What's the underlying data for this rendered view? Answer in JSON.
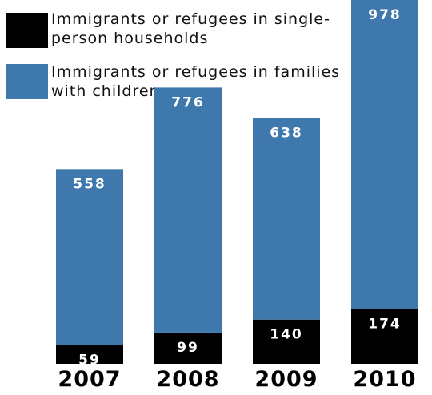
{
  "colors": {
    "families": "#3e78ad",
    "single": "#000000"
  },
  "chart_data": {
    "type": "bar",
    "stacked": true,
    "categories": [
      "2007",
      "2008",
      "2009",
      "2010"
    ],
    "series": [
      {
        "name": "Immigrants or refugees in single-\nperson households",
        "color": "#000000",
        "values": [
          59,
          99,
          140,
          174
        ]
      },
      {
        "name": "Immigrants or refugees in families\nwith children",
        "color": "#3e78ad",
        "values": [
          558,
          776,
          638,
          978
        ]
      }
    ],
    "legend_position": "top-left",
    "grid": false,
    "ylim": [
      0,
      1152
    ]
  }
}
